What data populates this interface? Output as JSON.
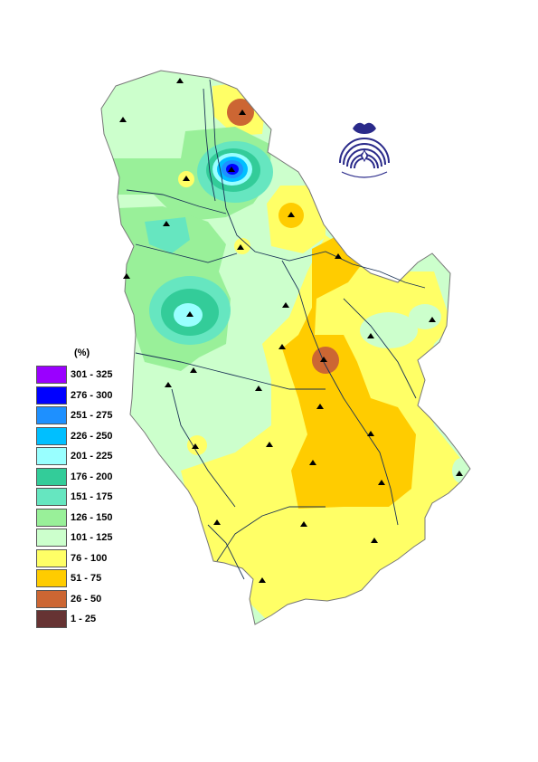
{
  "legend": {
    "title": "(%)",
    "items": [
      {
        "label": "301 - 325",
        "color": "#9a00ff"
      },
      {
        "label": "276 - 300",
        "color": "#0000ff"
      },
      {
        "label": "251 - 275",
        "color": "#1e90ff"
      },
      {
        "label": "226 - 250",
        "color": "#00bfff"
      },
      {
        "label": "201 - 225",
        "color": "#99ffff"
      },
      {
        "label": "176 - 200",
        "color": "#33cc99"
      },
      {
        "label": "151 - 175",
        "color": "#66e6c0"
      },
      {
        "label": "126 - 150",
        "color": "#99f099"
      },
      {
        "label": "101 - 125",
        "color": "#ccffcc"
      },
      {
        "label": "76 - 100",
        "color": "#ffff66"
      },
      {
        "label": "51 - 75",
        "color": "#ffcc00"
      },
      {
        "label": "26 - 50",
        "color": "#cc6633"
      },
      {
        "label": "1 - 25",
        "color": "#663333"
      }
    ]
  },
  "map": {
    "outline_color": "#777777",
    "river_color": "#1a3355",
    "station_marker": "triangle"
  },
  "logo": {
    "color": "#2a2a8a",
    "name": "institution-logo"
  }
}
